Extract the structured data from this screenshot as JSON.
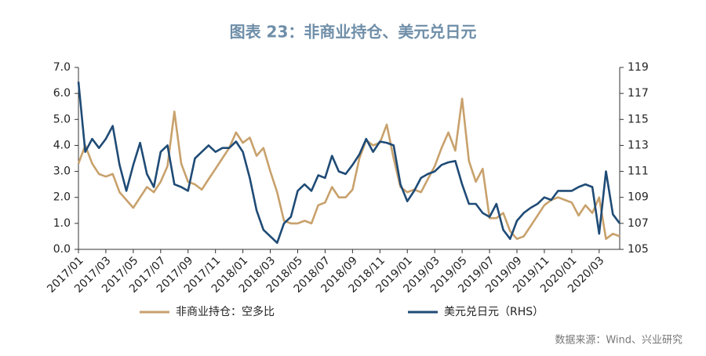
{
  "chart_data": {
    "type": "line",
    "title": "图表 23：非商业持仓、美元兑日元",
    "source": "数据来源：Wind、兴业研究",
    "categories": [
      "2017/01",
      null,
      null,
      null,
      "2017/03",
      null,
      null,
      null,
      "2017/05",
      null,
      null,
      null,
      "2017/07",
      null,
      null,
      null,
      "2017/09",
      null,
      null,
      null,
      "2017/11",
      null,
      null,
      null,
      "2018/01",
      null,
      null,
      null,
      "2018/03",
      null,
      null,
      null,
      "2018/05",
      null,
      null,
      null,
      "2018/07",
      null,
      null,
      null,
      "2018/09",
      null,
      null,
      null,
      "2018/11",
      null,
      null,
      null,
      "2019/01",
      null,
      null,
      null,
      "2019/03",
      null,
      null,
      null,
      "2019/05",
      null,
      null,
      null,
      "2019/07",
      null,
      null,
      null,
      "2019/09",
      null,
      null,
      null,
      "2019/11",
      null,
      null,
      null,
      "2020/01",
      null,
      null,
      null,
      "2020/03",
      null,
      null,
      null
    ],
    "series": [
      {
        "name": "非商业持仓：空多比",
        "color": "#c8a16c",
        "values": [
          3.3,
          4.0,
          3.3,
          2.9,
          2.8,
          2.9,
          2.2,
          1.9,
          1.6,
          2.0,
          2.4,
          2.2,
          2.6,
          3.2,
          5.3,
          3.3,
          2.6,
          2.5,
          2.3,
          2.7,
          3.1,
          3.5,
          3.9,
          4.5,
          4.1,
          4.3,
          3.6,
          3.9,
          3.0,
          2.2,
          1.1,
          1.0,
          1.0,
          1.1,
          1.0,
          1.7,
          1.8,
          2.4,
          2.0,
          2.0,
          2.3,
          3.5,
          4.2,
          4.0,
          4.1,
          4.8,
          3.5,
          2.4,
          2.2,
          2.3,
          2.2,
          2.7,
          3.2,
          3.9,
          4.5,
          3.8,
          5.8,
          3.4,
          2.6,
          3.1,
          1.2,
          1.2,
          1.4,
          0.7,
          0.4,
          0.5,
          0.9,
          1.3,
          1.7,
          1.9,
          2.0,
          1.9,
          1.8,
          1.3,
          1.7,
          1.4,
          2.0,
          0.4,
          0.6,
          0.5
        ]
      },
      {
        "name": "美元兑日元（RHS）",
        "color": "#1f4b76",
        "axis": "y2",
        "values": [
          117.9,
          112.5,
          113.5,
          112.8,
          113.5,
          114.5,
          111.5,
          109.5,
          111.5,
          113.2,
          110.8,
          109.8,
          112.5,
          113.0,
          110.0,
          109.8,
          109.5,
          112.0,
          112.5,
          113.0,
          112.5,
          112.8,
          112.8,
          113.3,
          112.5,
          110.5,
          108.0,
          106.5,
          106.0,
          105.5,
          107.0,
          107.5,
          109.5,
          110.0,
          109.5,
          110.7,
          110.5,
          112.2,
          111.0,
          110.8,
          111.5,
          112.3,
          113.5,
          112.5,
          113.3,
          113.2,
          113.0,
          110.0,
          108.7,
          109.5,
          110.5,
          110.8,
          111.0,
          111.5,
          111.7,
          111.8,
          110.0,
          108.5,
          108.5,
          107.8,
          107.5,
          108.5,
          106.5,
          105.8,
          107.2,
          107.8,
          108.2,
          108.5,
          109.0,
          108.8,
          109.5,
          109.5,
          109.5,
          109.8,
          110.0,
          109.8,
          106.2,
          111.0,
          107.7,
          107.0
        ]
      }
    ],
    "ylim": [
      0,
      7
    ],
    "yticks": [
      {
        "value": 0,
        "label": "0.0"
      },
      {
        "value": 1,
        "label": "1.0"
      },
      {
        "value": 2,
        "label": "2.0"
      },
      {
        "value": 3,
        "label": "3.0"
      },
      {
        "value": 4,
        "label": "4.0"
      },
      {
        "value": 5,
        "label": "5.0"
      },
      {
        "value": 6,
        "label": "6.0"
      },
      {
        "value": 7,
        "label": "7.0"
      }
    ],
    "y2lim": [
      105,
      119
    ],
    "y2ticks": [
      105,
      107,
      109,
      111,
      113,
      115,
      117,
      119
    ],
    "legend": "bottom"
  }
}
